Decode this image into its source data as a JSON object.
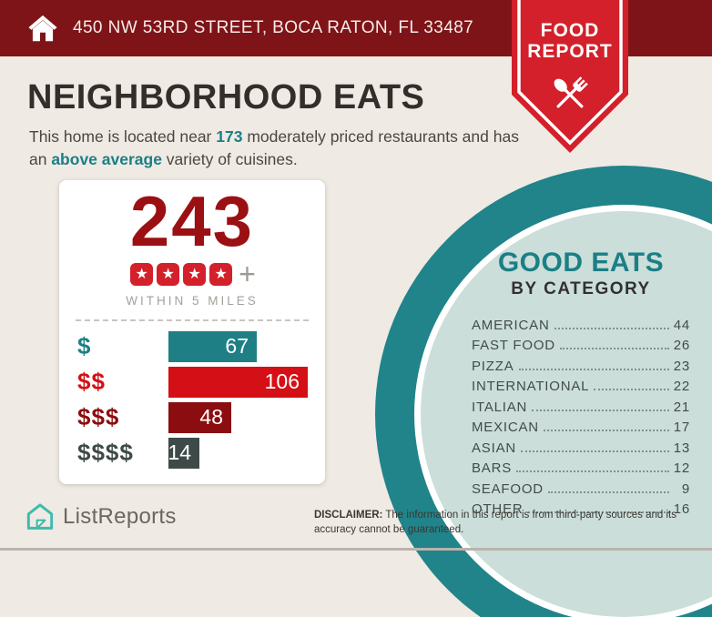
{
  "header": {
    "address": "450 NW 53RD STREET, BOCA RATON, FL 33487"
  },
  "badge": {
    "line1": "FOOD",
    "line2": "REPORT"
  },
  "page": {
    "title": "NEIGHBORHOOD EATS",
    "subtitle_pre": "This home is located near ",
    "subtitle_count": "173",
    "subtitle_mid": " moderately priced restaurants and has an ",
    "subtitle_highlight": "above average",
    "subtitle_post": " variety of cuisines."
  },
  "stats_card": {
    "total": "243",
    "stars": 4,
    "plus": "+",
    "radius_label": "WITHIN 5 MILES"
  },
  "good_eats": {
    "title": "GOOD EATS",
    "subtitle": "BY CATEGORY"
  },
  "footer": {
    "logo_text": "ListReports",
    "disclaimer_label": "DISCLAIMER:",
    "disclaimer_text": " The information in this report is from third-party sources and its accuracy cannot be guaranteed."
  },
  "colors": {
    "header_red": "#7E1418",
    "bright_red": "#D3202A",
    "deep_red": "#9B1013",
    "darkest_red": "#8C0D10",
    "teal": "#1E8084",
    "pale_teal": "#CBDED9",
    "charcoal": "#3E4A48",
    "background": "#EFEAE3"
  },
  "chart_data": [
    {
      "type": "bar",
      "orientation": "horizontal",
      "title": "243",
      "subtitle": "WITHIN 5 MILES",
      "categories": [
        "$",
        "$$",
        "$$$",
        "$$$$"
      ],
      "values": [
        67,
        106,
        48,
        14
      ],
      "colors": [
        "#1E8084",
        "#D41016",
        "#8C0D10",
        "#3E4A48"
      ],
      "xlim": [
        0,
        110
      ],
      "value_labels_inside": true,
      "grid": false,
      "legend": false
    },
    {
      "type": "table",
      "title": "GOOD EATS BY CATEGORY",
      "rows": [
        {
          "label": "AMERICAN",
          "value": 44
        },
        {
          "label": "FAST FOOD",
          "value": 26
        },
        {
          "label": "PIZZA",
          "value": 23
        },
        {
          "label": "INTERNATIONAL",
          "value": 22
        },
        {
          "label": "ITALIAN",
          "value": 21
        },
        {
          "label": "MEXICAN",
          "value": 17
        },
        {
          "label": "ASIAN",
          "value": 13
        },
        {
          "label": "BARS",
          "value": 12
        },
        {
          "label": "SEAFOOD",
          "value": 9
        },
        {
          "label": "OTHER",
          "value": 16
        }
      ]
    }
  ]
}
